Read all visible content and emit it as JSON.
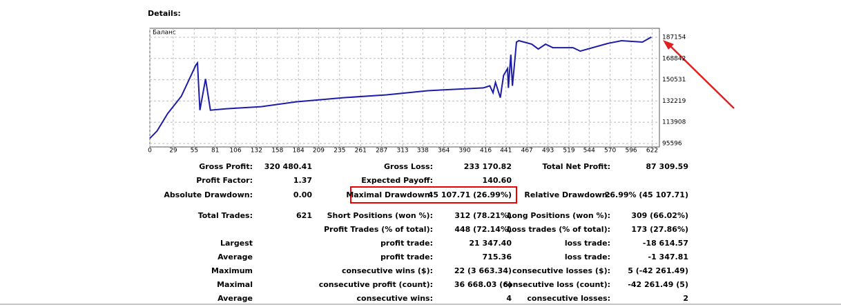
{
  "heading": "Details:",
  "chart_data": {
    "type": "line",
    "series_label": "Баланс",
    "x": [
      0,
      9,
      22,
      39,
      57,
      59,
      62,
      69,
      75,
      95,
      138,
      181,
      241,
      293,
      344,
      413,
      421,
      425,
      428,
      434,
      438,
      443,
      444,
      447,
      449,
      451,
      454,
      457,
      473,
      481,
      490,
      499,
      524,
      533,
      567,
      584,
      610,
      621
    ],
    "series": [
      {
        "name": "Баланс",
        "color": "#1c1ca8",
        "values": [
          100000,
          106400,
          121300,
          136300,
          163200,
          165000,
          124300,
          151250,
          124300,
          125500,
          127300,
          131500,
          135100,
          137500,
          141100,
          143500,
          145300,
          139300,
          148300,
          135100,
          154250,
          160200,
          143500,
          172200,
          145300,
          160200,
          183000,
          184200,
          181200,
          177000,
          181200,
          178200,
          178200,
          175200,
          181800,
          184200,
          183000,
          187310
        ]
      }
    ],
    "xlim": [
      0,
      631
    ],
    "xticks": [
      0,
      29,
      55,
      81,
      106,
      132,
      158,
      184,
      209,
      235,
      261,
      287,
      313,
      338,
      364,
      390,
      416,
      441,
      467,
      493,
      519,
      544,
      570,
      596,
      622
    ],
    "ylim": [
      92600,
      194900
    ],
    "yticks": [
      95596,
      113908,
      132219,
      150531,
      168842,
      187154
    ],
    "grid": true
  },
  "table": {
    "rows": [
      [
        "Gross Profit:",
        "320 480.41",
        "Gross Loss:",
        "233 170.82",
        "Total Net Profit:",
        "87 309.59"
      ],
      [
        "Profit Factor:",
        "1.37",
        "Expected Payoff:",
        "140.60",
        null,
        null
      ],
      [
        "Absolute Drawdown:",
        "0.00",
        "Maximal Drawdown:",
        "45 107.71 (26.99%)",
        "Relative Drawdown:",
        "26.99% (45 107.71)"
      ],
      [
        "Total Trades:",
        "621",
        "Short Positions (won %):",
        "312 (78.21%)",
        "Long Positions (won %):",
        "309 (66.02%)"
      ],
      [
        null,
        null,
        "Profit Trades (% of total):",
        "448 (72.14%)",
        "Loss trades (% of total):",
        "173 (27.86%)"
      ],
      [
        "Largest",
        null,
        "profit trade:",
        "21 347.40",
        "loss trade:",
        "-18 614.57"
      ],
      [
        "Average",
        null,
        "profit trade:",
        "715.36",
        "loss trade:",
        "-1 347.81"
      ],
      [
        "Maximum",
        null,
        "consecutive wins ($):",
        "22 (3 663.34)",
        "consecutive losses ($):",
        "5 (-42 261.49)"
      ],
      [
        "Maximal",
        null,
        "consecutive profit (count):",
        "36 668.03 (6)",
        "consecutive loss (count):",
        "-42 261.49 (5)"
      ],
      [
        "Average",
        null,
        "consecutive wins:",
        "4",
        "consecutive losses:",
        "2"
      ]
    ]
  }
}
